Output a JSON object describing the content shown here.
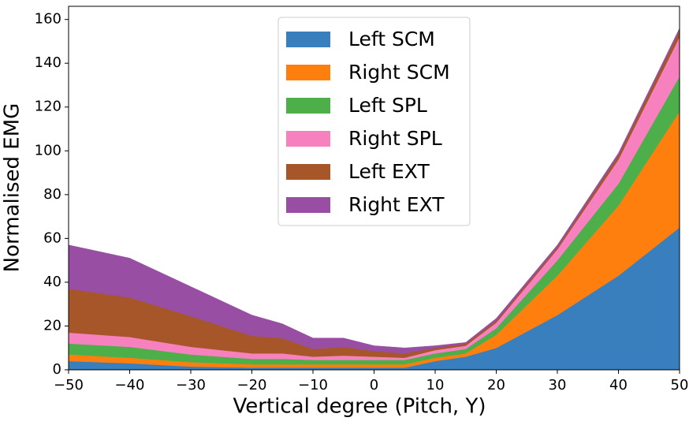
{
  "chart_data": {
    "type": "stacked-area",
    "x_label": "Vertical degree (Pitch, Y)",
    "y_label": "Normalised EMG",
    "x": [
      -50,
      -40,
      -30,
      -20,
      -15,
      -10,
      -5,
      0,
      5,
      10,
      15,
      20,
      30,
      40,
      50
    ],
    "series": [
      {
        "name": "Left SCM",
        "color": "#3a7fbd",
        "values": [
          4,
          3,
          1.5,
          1,
          1,
          1,
          1,
          1,
          1,
          4,
          6,
          10,
          25,
          43,
          65
        ]
      },
      {
        "name": "Right SCM",
        "color": "#ff7f0e",
        "values": [
          3,
          2.5,
          2,
          1.5,
          1.5,
          1.5,
          1.5,
          1.5,
          1.5,
          1.5,
          1.5,
          6,
          18,
          32,
          53
        ]
      },
      {
        "name": "Left SPL",
        "color": "#4daf4a",
        "values": [
          5,
          5,
          3.5,
          2.5,
          2.5,
          2,
          2,
          2,
          2,
          2,
          2,
          3,
          7,
          10,
          16
        ]
      },
      {
        "name": "Right SPL",
        "color": "#f781bf",
        "values": [
          5,
          4.5,
          3.5,
          2.5,
          2.5,
          1.5,
          2,
          1.5,
          1,
          1.5,
          1.5,
          2.5,
          5,
          11,
          18
        ]
      },
      {
        "name": "Left EXT",
        "color": "#a65628",
        "values": [
          20,
          18,
          14,
          8,
          7,
          3.5,
          4,
          2.5,
          2,
          1,
          1,
          1,
          1,
          2,
          3
        ]
      },
      {
        "name": "Right EXT",
        "color": "#984ea3",
        "values": [
          20,
          18,
          13.5,
          9.5,
          6.5,
          5,
          4,
          2.5,
          2.5,
          1,
          0.5,
          1,
          1,
          1,
          1
        ]
      }
    ],
    "xlim": [
      -50,
      50
    ],
    "xticks": [
      {
        "value": -50,
        "label": "−50"
      },
      {
        "value": -40,
        "label": "−40"
      },
      {
        "value": -30,
        "label": "−30"
      },
      {
        "value": -20,
        "label": "−20"
      },
      {
        "value": -10,
        "label": "−10"
      },
      0,
      10,
      20,
      30,
      40,
      50
    ],
    "ylim": [
      0,
      166
    ],
    "yticks": [
      0,
      20,
      40,
      60,
      80,
      100,
      120,
      140,
      160
    ],
    "legend": "upper center"
  }
}
